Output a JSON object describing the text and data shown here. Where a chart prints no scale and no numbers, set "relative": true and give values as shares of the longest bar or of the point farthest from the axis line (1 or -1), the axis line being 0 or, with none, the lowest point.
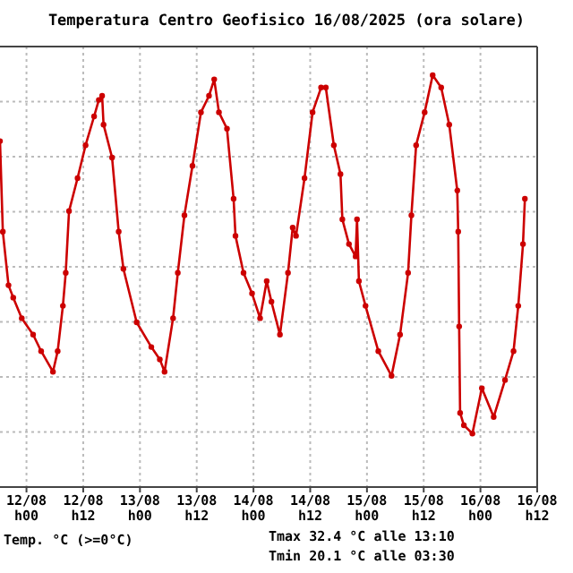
{
  "chart_data": {
    "type": "line",
    "title": "Temperatura Centro Geofisico 16/08/2025 (ora solare)",
    "relative": true,
    "grid": true,
    "marker": "circle",
    "line_style": "solid",
    "xlim": [
      "2025-08-11T18:24",
      "2025-08-16T12:00"
    ],
    "xticks": [
      {
        "value": "2025-08-12T00:00",
        "label": "12/08 h00"
      },
      {
        "value": "2025-08-12T12:00",
        "label": "12/08 h12"
      },
      {
        "value": "2025-08-13T00:00",
        "label": "13/08 h00"
      },
      {
        "value": "2025-08-13T12:00",
        "label": "13/08 h12"
      },
      {
        "value": "2025-08-14T00:00",
        "label": "14/08 h00"
      },
      {
        "value": "2025-08-14T12:00",
        "label": "14/08 h12"
      },
      {
        "value": "2025-08-15T00:00",
        "label": "15/08 h00"
      },
      {
        "value": "2025-08-15T12:00",
        "label": "15/08 h12"
      },
      {
        "value": "2025-08-16T00:00",
        "label": "16/08 h00"
      },
      {
        "value": "2025-08-16T12:00",
        "label": "16/08 h12"
      }
    ],
    "x": [
      "2025-08-11T18:24",
      "2025-08-11T19:00",
      "2025-08-11T20:12",
      "2025-08-11T21:12",
      "2025-08-11T23:00",
      "2025-08-12T01:24",
      "2025-08-12T03:06",
      "2025-08-12T05:36",
      "2025-08-12T06:36",
      "2025-08-12T07:42",
      "2025-08-12T08:18",
      "2025-08-12T09:00",
      "2025-08-12T10:48",
      "2025-08-12T12:30",
      "2025-08-12T14:18",
      "2025-08-12T15:18",
      "2025-08-12T16:00",
      "2025-08-12T16:18",
      "2025-08-12T18:06",
      "2025-08-12T19:30",
      "2025-08-12T20:30",
      "2025-08-12T23:18",
      "2025-08-13T02:24",
      "2025-08-13T04:12",
      "2025-08-13T05:12",
      "2025-08-13T07:00",
      "2025-08-13T08:00",
      "2025-08-13T09:24",
      "2025-08-13T11:06",
      "2025-08-13T12:54",
      "2025-08-13T14:36",
      "2025-08-13T15:42",
      "2025-08-13T16:42",
      "2025-08-13T18:24",
      "2025-08-13T19:48",
      "2025-08-13T20:12",
      "2025-08-13T21:54",
      "2025-08-13T23:42",
      "2025-08-14T01:24",
      "2025-08-14T02:48",
      "2025-08-14T03:48",
      "2025-08-14T05:36",
      "2025-08-14T07:18",
      "2025-08-14T08:18",
      "2025-08-14T09:00",
      "2025-08-14T10:48",
      "2025-08-14T12:30",
      "2025-08-14T14:18",
      "2025-08-14T15:18",
      "2025-08-14T17:00",
      "2025-08-14T18:24",
      "2025-08-14T18:48",
      "2025-08-14T20:12",
      "2025-08-14T21:36",
      "2025-08-14T21:54",
      "2025-08-14T22:18",
      "2025-08-14T23:42",
      "2025-08-15T02:24",
      "2025-08-15T05:12",
      "2025-08-15T07:00",
      "2025-08-15T08:42",
      "2025-08-15T09:24",
      "2025-08-15T10:24",
      "2025-08-15T12:12",
      "2025-08-15T13:54",
      "2025-08-15T15:42",
      "2025-08-15T17:24",
      "2025-08-15T19:06",
      "2025-08-15T19:18",
      "2025-08-15T19:30",
      "2025-08-15T19:42",
      "2025-08-15T20:30",
      "2025-08-15T22:18",
      "2025-08-16T00:18",
      "2025-08-16T02:48",
      "2025-08-16T05:12",
      "2025-08-16T07:00",
      "2025-08-16T08:00",
      "2025-08-16T09:00",
      "2025-08-16T09:24"
    ],
    "series": [
      {
        "color": "#cc0000",
        "values": [
          0.84,
          0.62,
          0.49,
          0.46,
          0.41,
          0.37,
          0.33,
          0.28,
          0.33,
          0.44,
          0.52,
          0.67,
          0.75,
          0.83,
          0.9,
          0.94,
          0.95,
          0.88,
          0.8,
          0.62,
          0.53,
          0.4,
          0.34,
          0.31,
          0.28,
          0.41,
          0.52,
          0.66,
          0.78,
          0.91,
          0.95,
          0.99,
          0.91,
          0.87,
          0.7,
          0.61,
          0.52,
          0.47,
          0.41,
          0.5,
          0.45,
          0.37,
          0.52,
          0.63,
          0.61,
          0.75,
          0.91,
          0.97,
          0.97,
          0.83,
          0.76,
          0.65,
          0.59,
          0.56,
          0.65,
          0.5,
          0.44,
          0.33,
          0.27,
          0.37,
          0.52,
          0.66,
          0.83,
          0.91,
          1.0,
          0.97,
          0.88,
          0.72,
          0.62,
          0.39,
          0.18,
          0.15,
          0.13,
          0.24,
          0.17,
          0.26,
          0.33,
          0.44,
          0.59,
          0.7
        ]
      }
    ],
    "annotations": [
      "Temp. °C (>=0°C)",
      "Tmax 32.4 °C alle 13:10",
      "Tmin 20.1 °C alle 03:30"
    ]
  }
}
